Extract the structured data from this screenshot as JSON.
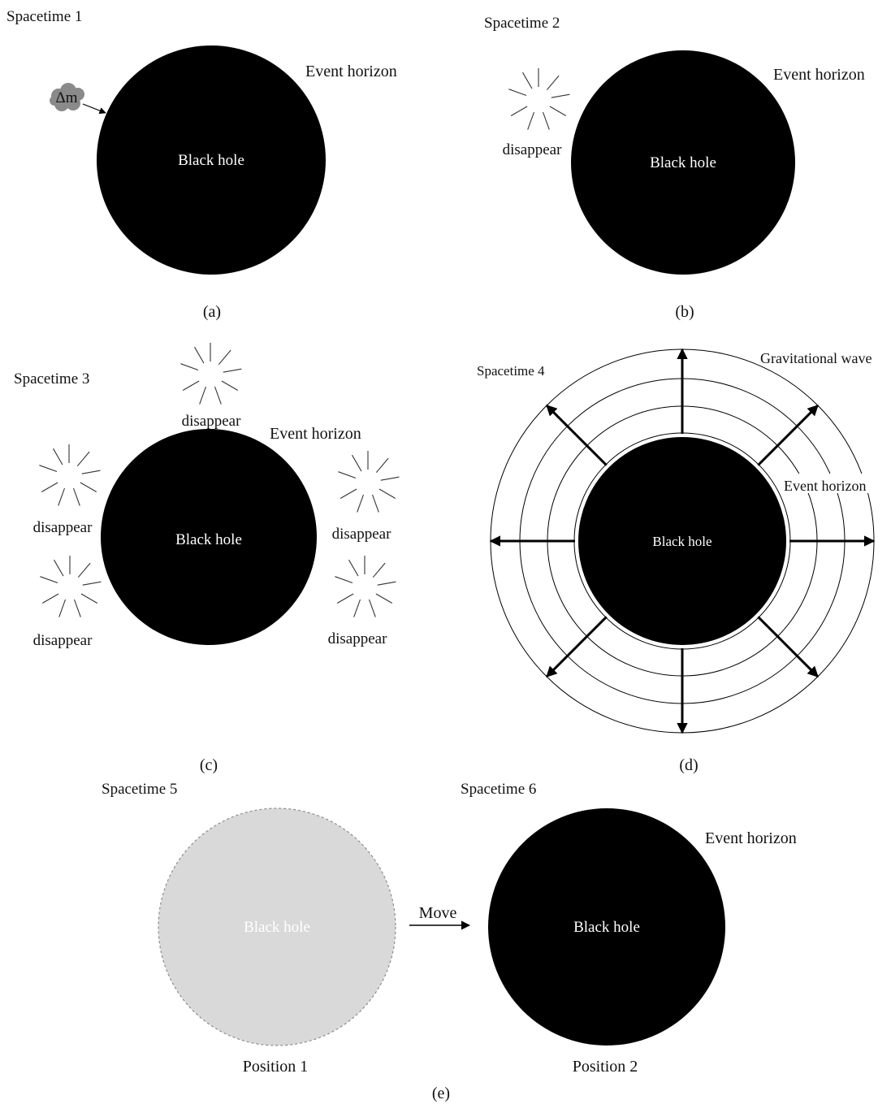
{
  "colors": {
    "black_hole": "#000000",
    "ghost_fill": "#d9d9d9",
    "ghost_outline": "#8c8c8c",
    "mass_blob": "#8a8a8a",
    "line": "#000000",
    "text": "#111111",
    "text_on_dark": "#ffffff"
  },
  "icons": {
    "disappear": "burst-lines-icon",
    "mass": "cloud-blob-icon"
  },
  "panels": {
    "a": {
      "title": "Spacetime 1",
      "horizon_label": "Event horizon",
      "hole_label": "Black hole",
      "mass_label": "Δm",
      "caption": "(a)"
    },
    "b": {
      "title": "Spacetime 2",
      "horizon_label": "Event horizon",
      "hole_label": "Black hole",
      "disappear_label": "disappear",
      "caption": "(b)"
    },
    "c": {
      "title": "Spacetime 3",
      "horizon_label": "Event horizon",
      "hole_label": "Black hole",
      "disappear_labels": [
        "disappear",
        "disappear",
        "disappear",
        "disappear",
        "disappear"
      ],
      "caption": "(c)"
    },
    "d": {
      "title": "Spacetime 4",
      "wave_label": "Gravitational wave",
      "horizon_label": "Event horizon",
      "hole_label": "Black hole",
      "caption": "(d)"
    },
    "e": {
      "title_left": "Spacetime 5",
      "title_right": "Spacetime 6",
      "horizon_label": "Event horizon",
      "ghost_hole_label": "Black hole",
      "hole_label": "Black hole",
      "move_label": "Move",
      "position_left": "Position 1",
      "position_right": "Position 2",
      "caption": "(e)"
    }
  }
}
